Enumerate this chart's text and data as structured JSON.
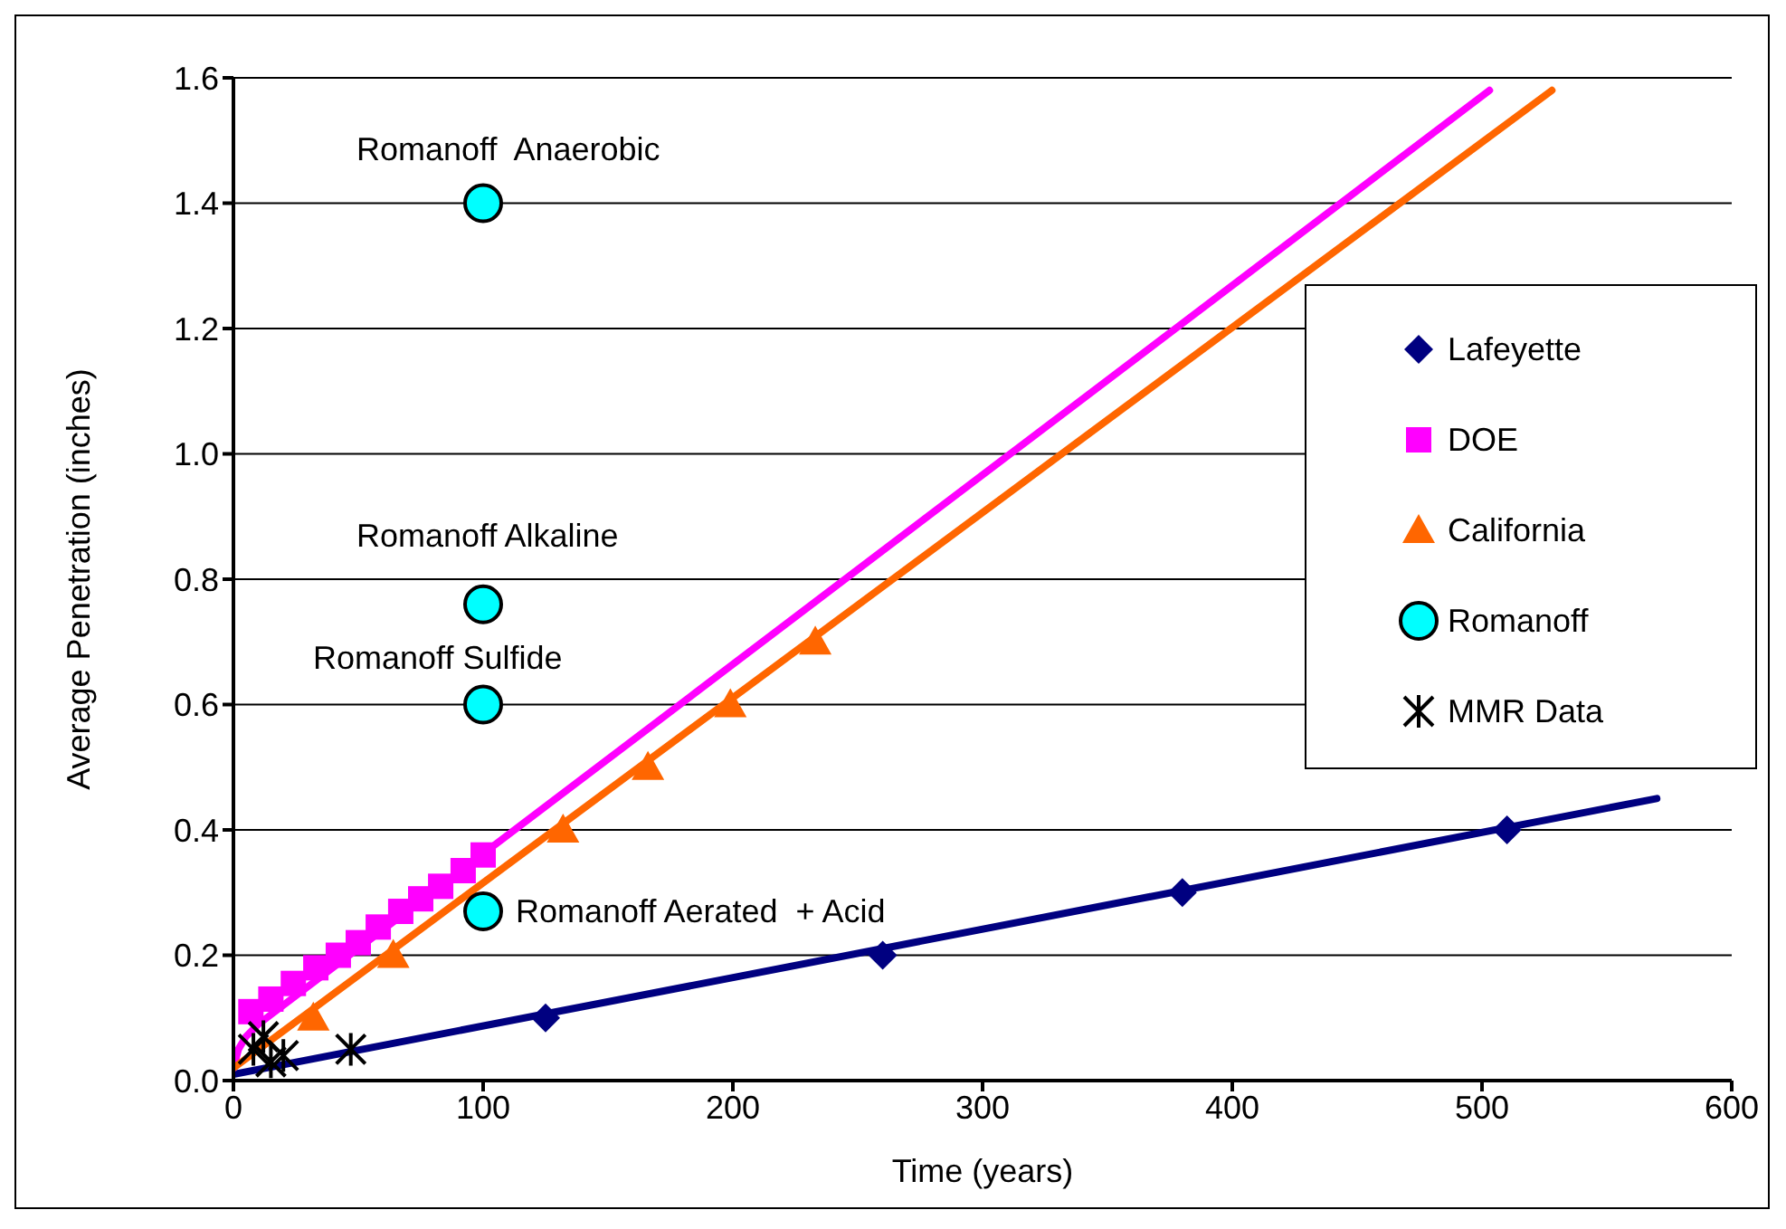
{
  "chart_data": {
    "type": "scatter",
    "xlabel": "Time (years)",
    "ylabel": "Average Penetration (inches)",
    "xlim": [
      0,
      600
    ],
    "xticks": [
      0,
      100,
      200,
      300,
      400,
      500,
      600
    ],
    "ylim": [
      0,
      1.6
    ],
    "yticks": [
      {
        "value": 0,
        "label": "0.0"
      },
      {
        "value": 0.2,
        "label": "0.2"
      },
      {
        "value": 0.4,
        "label": "0.4"
      },
      {
        "value": 0.6,
        "label": "0.6"
      },
      {
        "value": 0.8,
        "label": "0.8"
      },
      {
        "value": 1,
        "label": "1.0"
      },
      {
        "value": 1.2,
        "label": "1.2"
      },
      {
        "value": 1.4,
        "label": "1.4"
      },
      {
        "value": 1.6,
        "label": "1.6"
      }
    ],
    "grid": "y",
    "legend": "right",
    "series": [
      {
        "name": "Lafeyette",
        "marker": "diamond",
        "color": "#000080",
        "x": [
          125,
          260,
          380,
          510
        ],
        "values": [
          0.1,
          0.2,
          0.3,
          0.4
        ]
      },
      {
        "name": "DOE",
        "marker": "square",
        "color": "#ff00ff",
        "x": [
          7,
          15,
          24,
          33,
          42,
          50,
          58,
          67,
          75,
          83,
          92,
          100
        ],
        "values": [
          0.11,
          0.13,
          0.155,
          0.18,
          0.2,
          0.22,
          0.245,
          0.27,
          0.29,
          0.31,
          0.335,
          0.36
        ]
      },
      {
        "name": "California",
        "marker": "triangle",
        "color": "#ff6600",
        "x": [
          32,
          64,
          132,
          166,
          199,
          233
        ],
        "values": [
          0.1,
          0.2,
          0.4,
          0.5,
          0.6,
          0.7
        ]
      },
      {
        "name": "Romanoff",
        "marker": "circle",
        "color": "#00ffff",
        "x": [
          100,
          100,
          100,
          100
        ],
        "values": [
          1.4,
          0.76,
          0.6,
          0.27
        ]
      },
      {
        "name": "MMR Data",
        "marker": "cross",
        "color": "#000000",
        "x": [
          8,
          12,
          15,
          18,
          20,
          47
        ],
        "values": [
          0.05,
          0.07,
          0.03,
          null,
          0.04,
          0.05
        ]
      },
      {
        "type": "line",
        "marker": "none",
        "color": "#000080",
        "x": [
          0,
          570
        ],
        "values": [
          0.01,
          0.45
        ]
      },
      {
        "type": "line",
        "marker": "none",
        "color": "#ff00ff",
        "x": [
          0,
          2,
          5,
          10,
          503
        ],
        "values": [
          0.02,
          0.05,
          0.07,
          0.09,
          1.58
        ]
      },
      {
        "type": "line",
        "marker": "none",
        "color": "#ff6600",
        "x": [
          0,
          528
        ],
        "values": [
          0.02,
          1.58
        ]
      }
    ],
    "annotations": [
      "Romanoff  Anaerobic",
      "Romanoff Alkaline",
      "Romanoff Sulfide",
      "Romanoff Aerated  + Acid"
    ]
  }
}
